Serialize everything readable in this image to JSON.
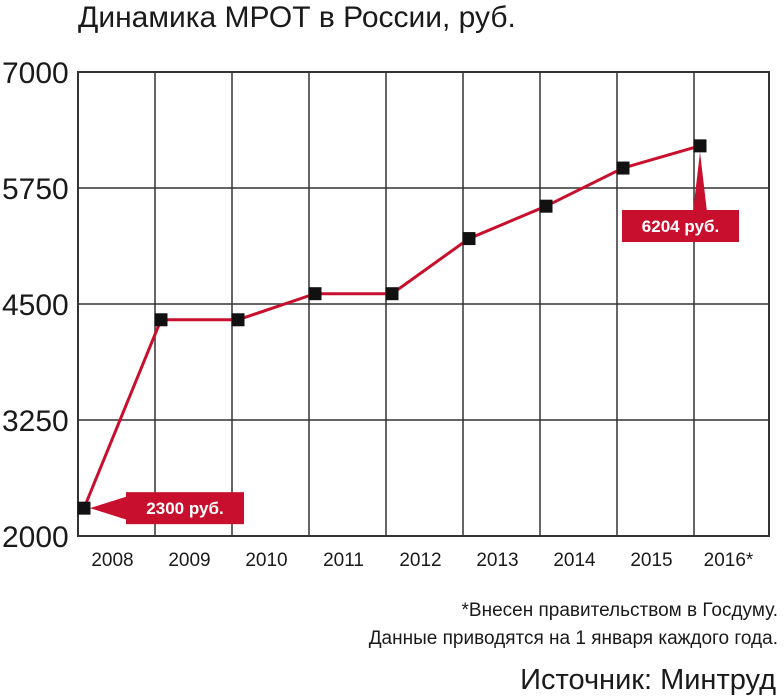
{
  "chart_data": {
    "type": "line",
    "title": "Динамика МРОТ в России, руб.",
    "categories": [
      "2008",
      "2009",
      "2010",
      "2011",
      "2012",
      "2013",
      "2014",
      "2015",
      "2016*"
    ],
    "series": [
      {
        "values": [
          2300,
          4330,
          4330,
          4611,
          4611,
          5205,
          5554,
          5965,
          6204
        ],
        "color": "#c8102e"
      }
    ],
    "yticks": [
      "7000",
      "5750",
      "4500",
      "3250",
      "2000"
    ],
    "ylim": [
      2000,
      7000
    ],
    "grid": true,
    "annotations": [
      {
        "text": "2300 руб.",
        "category": "2008",
        "value": 2300
      },
      {
        "text": "6204 руб.",
        "category": "2016*",
        "value": 6204
      }
    ]
  },
  "notes": [
    "*Внесен правительством в Госдуму.",
    "Данные приводятся на 1 января каждого года."
  ],
  "source": "Источник: Минтруд",
  "colors": {
    "line": "#c8102e",
    "label_bg": "#c8102e",
    "marker": "#111111",
    "grid": "#333333"
  }
}
